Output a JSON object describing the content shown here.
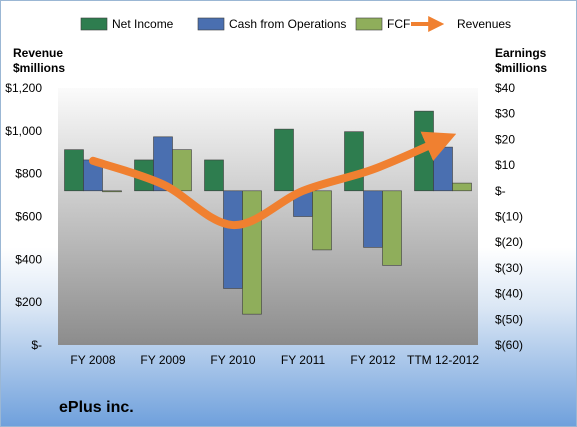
{
  "company": "ePlus inc.",
  "chart_data": {
    "type": "bar",
    "categories": [
      "FY 2008",
      "FY 2009",
      "FY 2010",
      "FY 2011",
      "FY 2012",
      "TTM 12-2012"
    ],
    "series": [
      {
        "name": "Net Income",
        "axis": "right",
        "color": "#2e7d4f",
        "values": [
          16,
          12,
          12,
          24,
          23,
          31
        ]
      },
      {
        "name": "Cash from Operations",
        "axis": "right",
        "color": "#4a6fb0",
        "values": [
          12,
          21,
          -38,
          -10,
          -22,
          17
        ]
      },
      {
        "name": "FCF",
        "axis": "right",
        "color": "#8fae5b",
        "values": [
          0,
          16,
          -48,
          -23,
          -29,
          3
        ]
      }
    ],
    "line_series": {
      "name": "Revenues",
      "axis": "left",
      "color": "#f08030",
      "values": [
        860,
        750,
        560,
        720,
        820,
        960
      ]
    },
    "left_axis": {
      "title_line1": "Revenue",
      "title_line2": "$millions",
      "ylim": [
        0,
        1200
      ],
      "ticks": [
        0,
        200,
        400,
        600,
        800,
        1000,
        1200
      ],
      "tick_labels": [
        "$-",
        "$200",
        "$400",
        "$600",
        "$800",
        "$1,000",
        "$1,200"
      ]
    },
    "right_axis": {
      "title_line1": "Earnings",
      "title_line2": "$millions",
      "ylim": [
        -60,
        40
      ],
      "ticks": [
        -60,
        -50,
        -40,
        -30,
        -20,
        -10,
        0,
        10,
        20,
        30,
        40
      ],
      "tick_labels": [
        "$(60)",
        "$(50)",
        "$(40)",
        "$(30)",
        "$(20)",
        "$(10)",
        "$-",
        "$10",
        "$20",
        "$30",
        "$40"
      ]
    },
    "legend_position": "top",
    "grid": false
  }
}
